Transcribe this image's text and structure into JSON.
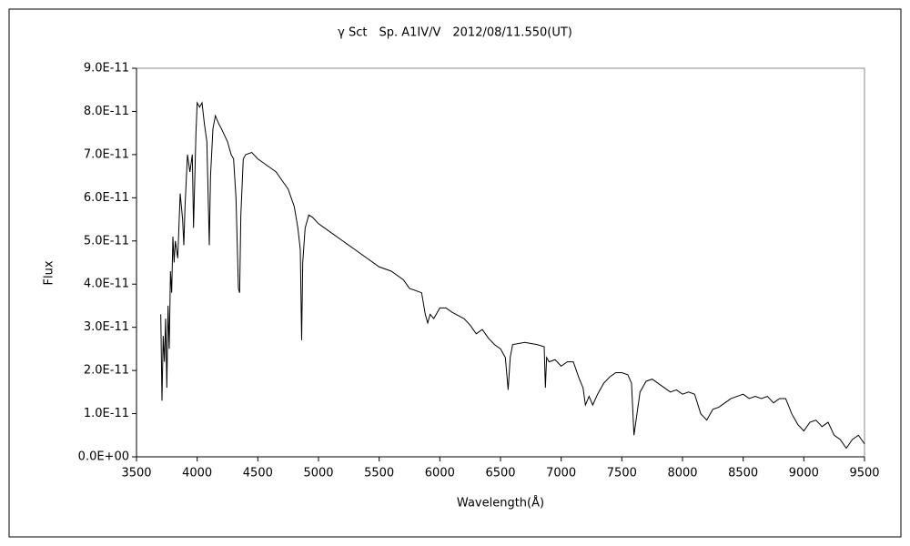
{
  "chart_data": {
    "type": "line",
    "title": "γ Sct　Sp. A1IV/V　2012/08/11.550(UT)",
    "x_label": "Wavelength(Å)",
    "y_label": "Flux",
    "color": "#000000",
    "grid": false,
    "xlim": [
      3500,
      9500
    ],
    "xticks": [
      3500,
      4000,
      4500,
      5000,
      5500,
      6000,
      6500,
      7000,
      7500,
      8000,
      8500,
      9000,
      9500
    ],
    "ylim": [
      0,
      9e-11
    ],
    "yticks": [
      {
        "value": 0,
        "label": "0.0E+00"
      },
      {
        "value": 1e-11,
        "label": "1.0E-11"
      },
      {
        "value": 2e-11,
        "label": "2.0E-11"
      },
      {
        "value": 3e-11,
        "label": "3.0E-11"
      },
      {
        "value": 4e-11,
        "label": "4.0E-11"
      },
      {
        "value": 5e-11,
        "label": "5.0E-11"
      },
      {
        "value": 6e-11,
        "label": "6.0E-11"
      },
      {
        "value": 7e-11,
        "label": "7.0E-11"
      },
      {
        "value": 8e-11,
        "label": "8.0E-11"
      },
      {
        "value": 9e-11,
        "label": "9.0E-11"
      }
    ],
    "x": [
      3700,
      3710,
      3720,
      3730,
      3740,
      3750,
      3760,
      3770,
      3780,
      3790,
      3800,
      3810,
      3820,
      3840,
      3860,
      3880,
      3890,
      3900,
      3920,
      3940,
      3960,
      3970,
      3990,
      4000,
      4020,
      4040,
      4060,
      4080,
      4100,
      4110,
      4130,
      4150,
      4180,
      4200,
      4250,
      4280,
      4300,
      4320,
      4340,
      4350,
      4360,
      4380,
      4400,
      4450,
      4500,
      4550,
      4600,
      4650,
      4700,
      4750,
      4800,
      4830,
      4850,
      4861,
      4870,
      4890,
      4920,
      4950,
      5000,
      5050,
      5100,
      5200,
      5300,
      5400,
      5500,
      5600,
      5700,
      5750,
      5800,
      5850,
      5880,
      5900,
      5920,
      5950,
      6000,
      6050,
      6100,
      6200,
      6250,
      6300,
      6350,
      6400,
      6450,
      6500,
      6540,
      6563,
      6580,
      6600,
      6700,
      6800,
      6860,
      6870,
      6880,
      6900,
      6950,
      7000,
      7050,
      7100,
      7150,
      7180,
      7200,
      7230,
      7260,
      7300,
      7350,
      7400,
      7450,
      7500,
      7550,
      7580,
      7600,
      7620,
      7650,
      7700,
      7750,
      7800,
      7850,
      7900,
      7950,
      8000,
      8050,
      8100,
      8150,
      8200,
      8250,
      8300,
      8350,
      8400,
      8450,
      8500,
      8550,
      8600,
      8650,
      8700,
      8750,
      8800,
      8850,
      8900,
      8950,
      9000,
      9050,
      9100,
      9150,
      9200,
      9250,
      9300,
      9350,
      9400,
      9450,
      9500
    ],
    "values": [
      3.3e-11,
      1.3e-11,
      2.8e-11,
      2.2e-11,
      3.2e-11,
      1.6e-11,
      3.5e-11,
      2.5e-11,
      4.3e-11,
      3.8e-11,
      5.1e-11,
      4.5e-11,
      5e-11,
      4.6e-11,
      6.1e-11,
      5.5e-11,
      4.9e-11,
      5.8e-11,
      7e-11,
      6.6e-11,
      7e-11,
      5.3e-11,
      7.5e-11,
      8.2e-11,
      8.1e-11,
      8.2e-11,
      7.7e-11,
      7.3e-11,
      4.9e-11,
      6.5e-11,
      7.6e-11,
      7.9e-11,
      7.7e-11,
      7.6e-11,
      7.3e-11,
      7e-11,
      6.9e-11,
      6e-11,
      3.9e-11,
      3.8e-11,
      5.6e-11,
      6.9e-11,
      7e-11,
      7.05e-11,
      6.9e-11,
      6.8e-11,
      6.7e-11,
      6.6e-11,
      6.4e-11,
      6.2e-11,
      5.8e-11,
      5.3e-11,
      4.8e-11,
      2.7e-11,
      4.5e-11,
      5.3e-11,
      5.6e-11,
      5.55e-11,
      5.4e-11,
      5.3e-11,
      5.2e-11,
      5e-11,
      4.8e-11,
      4.6e-11,
      4.4e-11,
      4.3e-11,
      4.1e-11,
      3.9e-11,
      3.85e-11,
      3.8e-11,
      3.3e-11,
      3.1e-11,
      3.3e-11,
      3.2e-11,
      3.45e-11,
      3.45e-11,
      3.35e-11,
      3.2e-11,
      3.05e-11,
      2.85e-11,
      2.95e-11,
      2.75e-11,
      2.6e-11,
      2.5e-11,
      2.3e-11,
      1.55e-11,
      2.3e-11,
      2.6e-11,
      2.65e-11,
      2.6e-11,
      2.55e-11,
      1.6e-11,
      2.3e-11,
      2.2e-11,
      2.25e-11,
      2.1e-11,
      2.2e-11,
      2.2e-11,
      1.8e-11,
      1.6e-11,
      1.2e-11,
      1.4e-11,
      1.2e-11,
      1.45e-11,
      1.7e-11,
      1.85e-11,
      1.95e-11,
      1.95e-11,
      1.9e-11,
      1.7e-11,
      5e-12,
      9e-12,
      1.5e-11,
      1.75e-11,
      1.8e-11,
      1.7e-11,
      1.6e-11,
      1.5e-11,
      1.55e-11,
      1.45e-11,
      1.5e-11,
      1.45e-11,
      1e-11,
      8.5e-12,
      1.1e-11,
      1.15e-11,
      1.25e-11,
      1.35e-11,
      1.4e-11,
      1.45e-11,
      1.35e-11,
      1.4e-11,
      1.35e-11,
      1.4e-11,
      1.25e-11,
      1.35e-11,
      1.35e-11,
      1e-11,
      7.5e-12,
      6e-12,
      8e-12,
      8.5e-12,
      7e-12,
      8e-12,
      5e-12,
      4e-12,
      2e-12,
      4e-12,
      5e-12,
      3e-12
    ]
  }
}
